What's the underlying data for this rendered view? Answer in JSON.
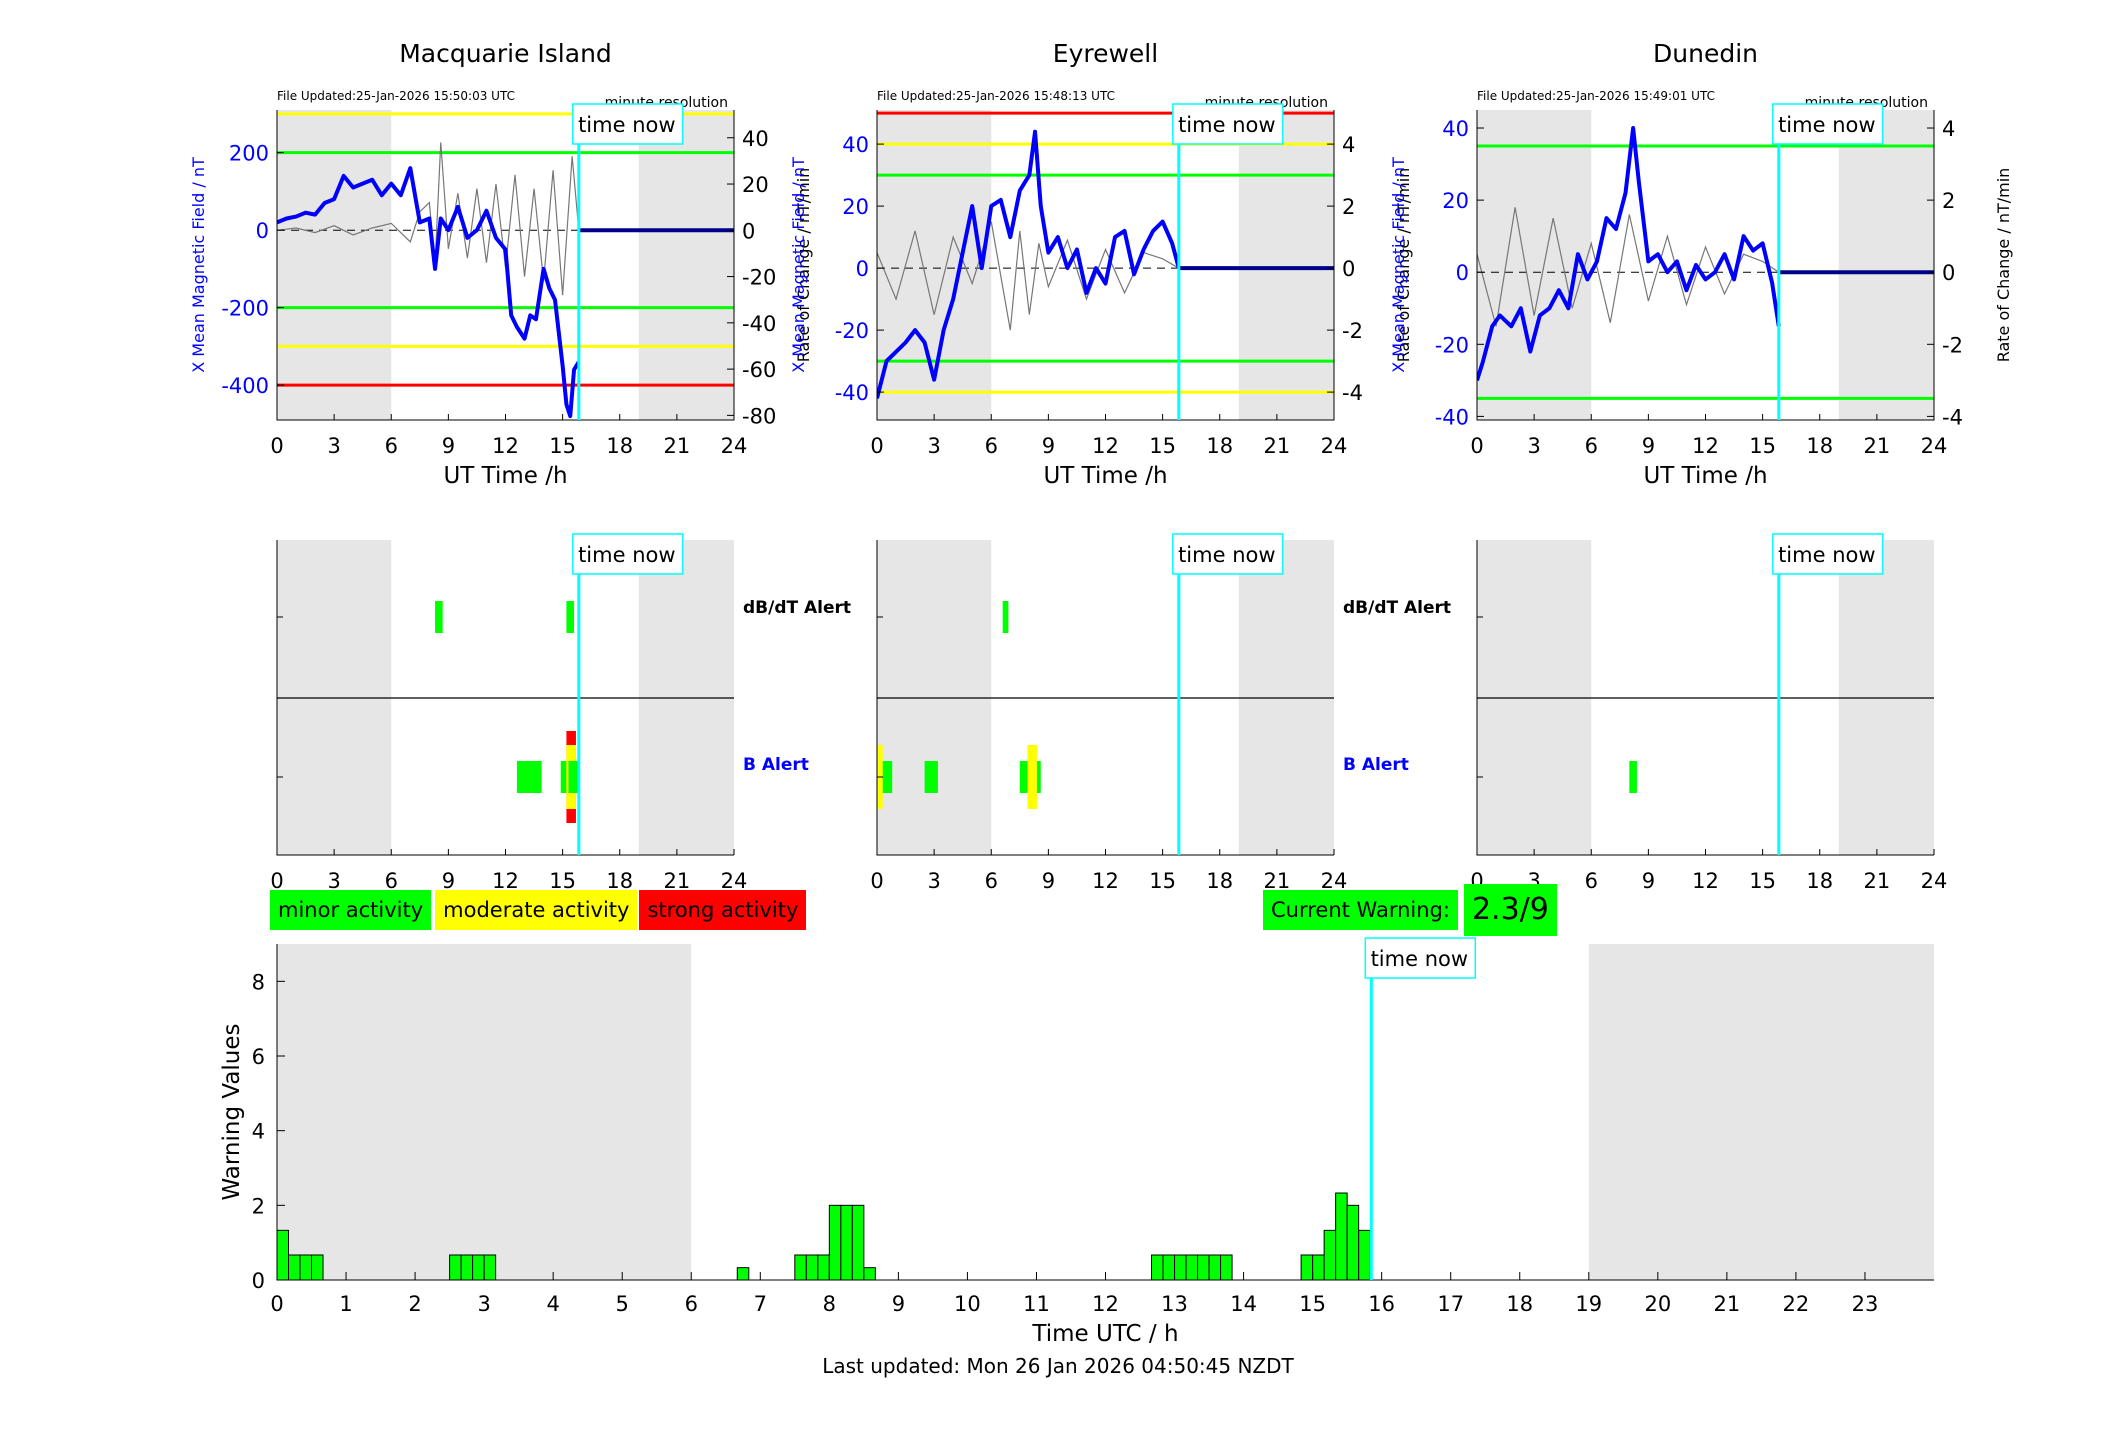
{
  "footer": "Last updated: Mon 26 Jan 2026 04:50:45 NZDT",
  "now_label": "time now",
  "now_hour": 15.85,
  "night": [
    [
      0,
      6
    ],
    [
      19,
      24
    ]
  ],
  "panel_xticks": [
    0,
    3,
    6,
    9,
    12,
    15,
    18,
    21,
    24
  ],
  "colors": {
    "b_field": "#0000ff",
    "rate": "#777777",
    "minor": "#00ff00",
    "moderate": "#ffff00",
    "strong": "#ff0000",
    "now": "#00ffff",
    "shade": "#e6e6e6",
    "alert_b": "#0000ff"
  },
  "chart_data": [
    {
      "type": "line",
      "station": "Macquarie Island",
      "file_updated": "File Updated:25-Jan-2026 15:50:03 UTC",
      "resolution": "minute resolution",
      "xlabel": "UT Time /h",
      "ylabel": "X Mean Magnetic Field / nT",
      "y2label": "Rate of Change / nT/min",
      "xlim": [
        0,
        24
      ],
      "ylim": [
        -490,
        310
      ],
      "y2lim": [
        -82,
        52
      ],
      "yticks": [
        -400,
        -200,
        0,
        200
      ],
      "y2ticks": [
        -80,
        -60,
        -40,
        -20,
        0,
        20,
        40
      ],
      "thresholds": [
        {
          "y": 300,
          "color": "yellow"
        },
        {
          "y": 200,
          "color": "green"
        },
        {
          "y": -200,
          "color": "green"
        },
        {
          "y": -300,
          "color": "yellow"
        },
        {
          "y": -400,
          "color": "red"
        }
      ],
      "b_field": {
        "x": [
          0,
          0.5,
          1,
          1.5,
          2,
          2.5,
          3,
          3.5,
          4,
          4.5,
          5,
          5.5,
          6,
          6.5,
          7,
          7.5,
          8,
          8.3,
          8.6,
          9,
          9.5,
          10,
          10.5,
          11,
          11.5,
          12,
          12.3,
          12.6,
          13,
          13.3,
          13.6,
          14,
          14.3,
          14.6,
          15,
          15.2,
          15.4,
          15.6,
          15.85
        ],
        "y": [
          20,
          30,
          35,
          45,
          40,
          70,
          80,
          140,
          110,
          120,
          130,
          90,
          120,
          90,
          160,
          20,
          30,
          -100,
          30,
          0,
          60,
          -20,
          0,
          50,
          -20,
          -50,
          -220,
          -250,
          -280,
          -220,
          -230,
          -100,
          -150,
          -180,
          -350,
          -450,
          -480,
          -360,
          -340
        ]
      },
      "rate": {
        "x": [
          0,
          1,
          2,
          3,
          4,
          5,
          6,
          7,
          7.5,
          8,
          8.3,
          8.6,
          9,
          9.5,
          10,
          10.5,
          11,
          11.5,
          12,
          12.5,
          13,
          13.5,
          14,
          14.5,
          15,
          15.5,
          15.85
        ],
        "y": [
          0,
          1,
          -1,
          2,
          -2,
          1,
          3,
          -5,
          8,
          12,
          -15,
          38,
          -8,
          16,
          -12,
          18,
          -14,
          20,
          -16,
          24,
          -20,
          18,
          -22,
          26,
          -28,
          32,
          0
        ]
      },
      "alerts_db": [
        {
          "x0": 8.3,
          "x1": 8.7,
          "level": "minor"
        },
        {
          "x0": 15.2,
          "x1": 15.6,
          "level": "minor"
        }
      ],
      "alerts_b": [
        {
          "x0": 12.6,
          "x1": 13.9,
          "level": "minor"
        },
        {
          "x0": 14.9,
          "x1": 15.8,
          "level": "minor"
        },
        {
          "x0": 15.2,
          "x1": 15.7,
          "level": "moderate",
          "tall": true
        },
        {
          "x0": 15.2,
          "x1": 15.7,
          "level": "strong",
          "tall2": true
        }
      ]
    },
    {
      "type": "line",
      "station": "Eyrewell",
      "file_updated": "File Updated:25-Jan-2026 15:48:13 UTC",
      "resolution": "minute resolution",
      "xlabel": "UT Time /h",
      "ylabel": "X Mean Magnetic Field / nT",
      "y2label": "Rate of Change / nT/min",
      "xlim": [
        0,
        24
      ],
      "ylim": [
        -49,
        51
      ],
      "y2lim": [
        -4.9,
        5.1
      ],
      "yticks": [
        -40,
        -20,
        0,
        20,
        40
      ],
      "y2ticks": [
        -4,
        -2,
        0,
        2,
        4
      ],
      "thresholds": [
        {
          "y": 50,
          "color": "red"
        },
        {
          "y": 40,
          "color": "yellow"
        },
        {
          "y": 30,
          "color": "green"
        },
        {
          "y": -30,
          "color": "green"
        },
        {
          "y": -40,
          "color": "yellow"
        }
      ],
      "b_field": {
        "x": [
          0,
          0.5,
          1,
          1.5,
          2,
          2.5,
          3,
          3.5,
          4,
          4.5,
          5,
          5.5,
          6,
          6.5,
          7,
          7.5,
          8,
          8.3,
          8.6,
          9,
          9.5,
          10,
          10.5,
          11,
          11.5,
          12,
          12.5,
          13,
          13.5,
          14,
          14.5,
          15,
          15.5,
          15.85
        ],
        "y": [
          -42,
          -30,
          -27,
          -24,
          -20,
          -24,
          -36,
          -20,
          -10,
          5,
          20,
          0,
          20,
          22,
          10,
          25,
          30,
          44,
          20,
          5,
          10,
          0,
          6,
          -8,
          0,
          -5,
          10,
          12,
          -2,
          6,
          12,
          15,
          8,
          0
        ]
      },
      "rate": {
        "x": [
          0,
          1,
          2,
          3,
          4,
          5,
          6,
          7,
          7.5,
          8,
          8.5,
          9,
          10,
          11,
          12,
          13,
          14,
          15,
          15.85
        ],
        "y": [
          0.5,
          -1,
          1.2,
          -1.5,
          1,
          -0.5,
          1.5,
          -2,
          1.2,
          -1.5,
          0.8,
          -0.6,
          0.9,
          -1,
          0.6,
          -0.8,
          0.5,
          0.3,
          0
        ]
      },
      "alerts_db": [
        {
          "x0": 6.6,
          "x1": 6.9,
          "level": "minor"
        }
      ],
      "alerts_b": [
        {
          "x0": 0,
          "x1": 0.8,
          "level": "minor"
        },
        {
          "x0": 0,
          "x1": 0.3,
          "level": "moderate",
          "tall": true
        },
        {
          "x0": 2.5,
          "x1": 3.2,
          "level": "minor"
        },
        {
          "x0": 7.5,
          "x1": 8.6,
          "level": "minor"
        },
        {
          "x0": 7.9,
          "x1": 8.4,
          "level": "moderate",
          "tall": true
        }
      ]
    },
    {
      "type": "line",
      "station": "Dunedin",
      "file_updated": "File Updated:25-Jan-2026 15:49:01 UTC",
      "resolution": "minute resolution",
      "xlabel": "UT Time /h",
      "ylabel": "X Mean Magnetic Field / nT",
      "y2label": "Rate of Change / nT/min",
      "xlim": [
        0,
        24
      ],
      "ylim": [
        -41,
        45
      ],
      "y2lim": [
        -4.1,
        4.5
      ],
      "yticks": [
        -40,
        -20,
        0,
        20,
        40
      ],
      "y2ticks": [
        -4,
        -2,
        0,
        2,
        4
      ],
      "thresholds": [
        {
          "y": 35,
          "color": "green"
        },
        {
          "y": -35,
          "color": "green"
        }
      ],
      "b_field": {
        "x": [
          0,
          0.3,
          0.8,
          1.2,
          1.8,
          2.3,
          2.8,
          3.3,
          3.8,
          4.3,
          4.8,
          5.3,
          5.8,
          6.3,
          6.8,
          7.3,
          7.8,
          8.2,
          8.5,
          9,
          9.5,
          10,
          10.5,
          11,
          11.5,
          12,
          12.5,
          13,
          13.5,
          14,
          14.5,
          15,
          15.5,
          15.85
        ],
        "y": [
          -30,
          -25,
          -15,
          -12,
          -15,
          -10,
          -22,
          -12,
          -10,
          -5,
          -10,
          5,
          -2,
          3,
          15,
          12,
          22,
          40,
          25,
          3,
          5,
          0,
          3,
          -5,
          2,
          -2,
          0,
          5,
          -2,
          10,
          6,
          8,
          -3,
          -15
        ]
      },
      "rate": {
        "x": [
          0,
          1,
          2,
          3,
          4,
          5,
          6,
          7,
          8,
          9,
          10,
          11,
          12,
          13,
          14,
          15,
          15.85
        ],
        "y": [
          0.5,
          -1.5,
          1.8,
          -1.2,
          1.5,
          -1,
          0.8,
          -1.4,
          1.6,
          -0.8,
          1,
          -0.9,
          0.7,
          -0.6,
          0.5,
          0.3,
          0
        ]
      },
      "alerts_db": [],
      "alerts_b": [
        {
          "x0": 8,
          "x1": 8.4,
          "level": "minor"
        }
      ]
    },
    {
      "type": "bar",
      "xlabel": "Time UTC / h",
      "ylabel": "Warning Values",
      "xlim": [
        0,
        24
      ],
      "ylim": [
        0,
        9
      ],
      "xticks": [
        0,
        1,
        2,
        3,
        4,
        5,
        6,
        7,
        8,
        9,
        10,
        11,
        12,
        13,
        14,
        15,
        16,
        17,
        18,
        19,
        20,
        21,
        22,
        23
      ],
      "yticks": [
        0,
        2,
        4,
        6,
        8
      ],
      "bin_width": 0.1667,
      "bars": [
        [
          0,
          1.33
        ],
        [
          0.1667,
          0.67
        ],
        [
          0.3333,
          0.67
        ],
        [
          0.5,
          0.67
        ],
        [
          2.5,
          0.67
        ],
        [
          2.6667,
          0.67
        ],
        [
          2.8333,
          0.67
        ],
        [
          3,
          0.67
        ],
        [
          6.6667,
          0.33
        ],
        [
          7.5,
          0.67
        ],
        [
          7.6667,
          0.67
        ],
        [
          7.8333,
          0.67
        ],
        [
          8,
          2
        ],
        [
          8.1667,
          2
        ],
        [
          8.3333,
          2
        ],
        [
          8.5,
          0.33
        ],
        [
          12.6667,
          0.67
        ],
        [
          12.8333,
          0.67
        ],
        [
          13,
          0.67
        ],
        [
          13.1667,
          0.67
        ],
        [
          13.3333,
          0.67
        ],
        [
          13.5,
          0.67
        ],
        [
          13.6667,
          0.67
        ],
        [
          14.8333,
          0.67
        ],
        [
          15,
          0.67
        ],
        [
          15.1667,
          1.33
        ],
        [
          15.3333,
          2.33
        ],
        [
          15.5,
          2
        ],
        [
          15.6667,
          1.33
        ]
      ]
    }
  ],
  "legend": [
    {
      "label": "minor activity",
      "level": "minor"
    },
    {
      "label": "moderate activity",
      "level": "moderate"
    },
    {
      "label": "strong activity",
      "level": "strong"
    }
  ],
  "alert_labels": {
    "db": "dB/dT Alert",
    "b": "B Alert"
  },
  "current_warning": {
    "label": "Current Warning:",
    "value": "2.3/9"
  }
}
